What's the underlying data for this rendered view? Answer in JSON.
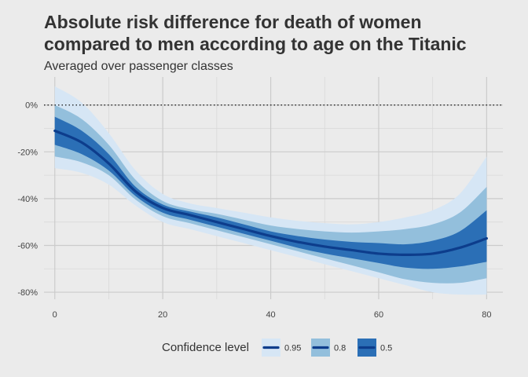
{
  "chart_data": {
    "type": "area",
    "title": [
      "Absolute risk difference for death of women",
      "compared to men according to age on the Titanic"
    ],
    "subtitle": "Averaged over passenger classes",
    "xlabel": "",
    "ylabel": "",
    "xlim": [
      -2,
      83
    ],
    "ylim": [
      -83,
      12
    ],
    "x_ticks": [
      0,
      20,
      40,
      60,
      80
    ],
    "y_ticks": [
      0,
      -20,
      -40,
      -60,
      -80
    ],
    "y_tick_labels": [
      "0%",
      "-20%",
      "-40%",
      "-60%",
      "-80%"
    ],
    "x_tick_labels": [
      "0",
      "20",
      "40",
      "60",
      "80"
    ],
    "reference_line": {
      "y": 0,
      "style": "dotted"
    },
    "grid": true,
    "legend": {
      "position": "bottom",
      "title": "Confidence level",
      "entries": [
        {
          "label": "0.95",
          "color": "#d6e6f5"
        },
        {
          "label": "0.8",
          "color": "#93bfdc"
        },
        {
          "label": "0.5",
          "color": "#2b6fb6"
        }
      ]
    },
    "colors": {
      "line": "#0d3d8c",
      "band_95": "#d6e6f5",
      "band_80": "#93bfdc",
      "band_50": "#2b6fb6"
    },
    "x": [
      0,
      5,
      10,
      15,
      20,
      25,
      30,
      35,
      40,
      45,
      50,
      55,
      60,
      65,
      70,
      75,
      80
    ],
    "median": [
      -11,
      -16,
      -25,
      -37,
      -44,
      -47,
      -50,
      -53,
      -56,
      -58.5,
      -60.5,
      -62,
      -63.5,
      -64,
      -63.5,
      -61,
      -57
    ],
    "bands": [
      {
        "level": "0.95",
        "lower": [
          -27,
          -29,
          -34,
          -43,
          -50,
          -53,
          -56,
          -59,
          -62,
          -65,
          -68,
          -71,
          -74,
          -77,
          -80,
          -81,
          -81
        ],
        "upper": [
          8,
          1,
          -12,
          -28,
          -38,
          -42,
          -44,
          -46,
          -48,
          -49.5,
          -50.5,
          -51,
          -50,
          -48,
          -45,
          -38,
          -22
        ]
      },
      {
        "level": "0.8",
        "lower": [
          -22,
          -24.5,
          -30,
          -40.5,
          -47.5,
          -50.5,
          -53.5,
          -56.5,
          -59.5,
          -62.5,
          -65.5,
          -68.5,
          -71.5,
          -74.5,
          -76,
          -76,
          -74
        ]
      },
      {
        "level": "0.5",
        "lower": [
          -17,
          -21,
          -28,
          -39,
          -46,
          -49,
          -52,
          -55,
          -58,
          -61,
          -63.5,
          -65.5,
          -67.5,
          -69.5,
          -70,
          -69,
          -67
        ]
      }
    ],
    "bands_upper_80": [
      0,
      -6,
      -17,
      -32,
      -41,
      -44.5,
      -46.5,
      -49,
      -51.5,
      -53,
      -54,
      -54.5,
      -54,
      -53,
      -51,
      -46,
      -35
    ],
    "bands_upper_50": [
      -5,
      -11,
      -21,
      -35,
      -42.5,
      -45.5,
      -48,
      -51,
      -54,
      -56,
      -57.5,
      -58.5,
      -59,
      -59.5,
      -58,
      -54,
      -45
    ]
  }
}
